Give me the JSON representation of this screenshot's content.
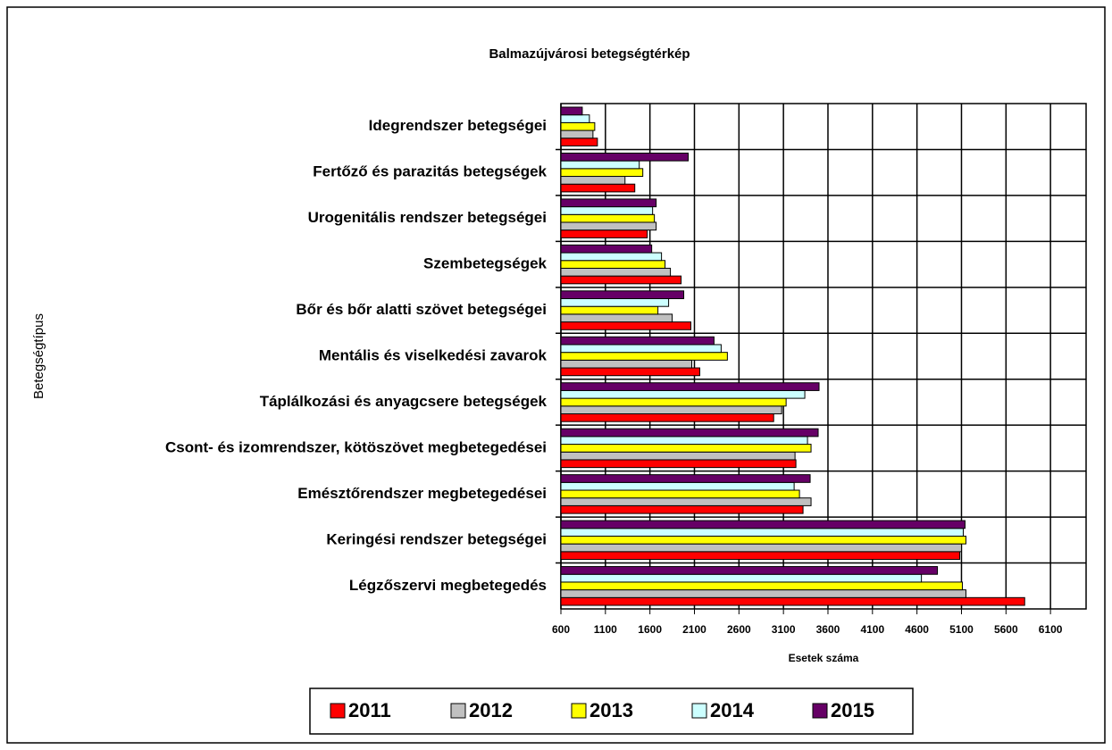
{
  "chart_data": {
    "type": "hbar",
    "title": "Balmazújvárosi betegségtérkép",
    "xlabel": "Esetek száma",
    "ylabel": "Betegségtípus",
    "categories": [
      "Idegrendszer betegségei",
      "Fertőző és parazitás betegségek",
      "Urogenitális rendszer betegségei",
      "Szembetegségek",
      "Bőr és bőr alatti szövet betegségei",
      "Mentális és viselkedési zavarok",
      "Táplálkozási és anyagcsere betegségek",
      "Csont- és izomrendszer, kötöszövet megbetegedései",
      "Emésztőrendszer megbetegedései",
      "Keringési rendszer betegségei",
      "Légzőszervi megbetegedés"
    ],
    "series": [
      {
        "name": "2011",
        "color": "#ff0000",
        "values": [
          1010,
          1430,
          1570,
          1950,
          2060,
          2160,
          2990,
          3240,
          3320,
          5080,
          5810
        ]
      },
      {
        "name": "2012",
        "color": "#c0c0c0",
        "values": [
          960,
          1320,
          1670,
          1830,
          1850,
          2070,
          3080,
          3230,
          3410,
          5100,
          5150
        ]
      },
      {
        "name": "2013",
        "color": "#ffff00",
        "values": [
          980,
          1520,
          1650,
          1770,
          1690,
          2470,
          3130,
          3410,
          3280,
          5150,
          5110
        ]
      },
      {
        "name": "2014",
        "color": "#ccffff",
        "values": [
          920,
          1480,
          1630,
          1730,
          1810,
          2400,
          3340,
          3370,
          3220,
          5120,
          4650
        ]
      },
      {
        "name": "2015",
        "color": "#660066",
        "values": [
          840,
          2030,
          1670,
          1620,
          1980,
          2320,
          3500,
          3490,
          3400,
          5140,
          4830
        ]
      }
    ],
    "xlim": [
      600,
      6500
    ],
    "xticks": [
      600,
      1100,
      1600,
      2100,
      2600,
      3100,
      3600,
      4100,
      4600,
      5100,
      5600,
      6100
    ],
    "grid": true,
    "legend": "bottom"
  }
}
